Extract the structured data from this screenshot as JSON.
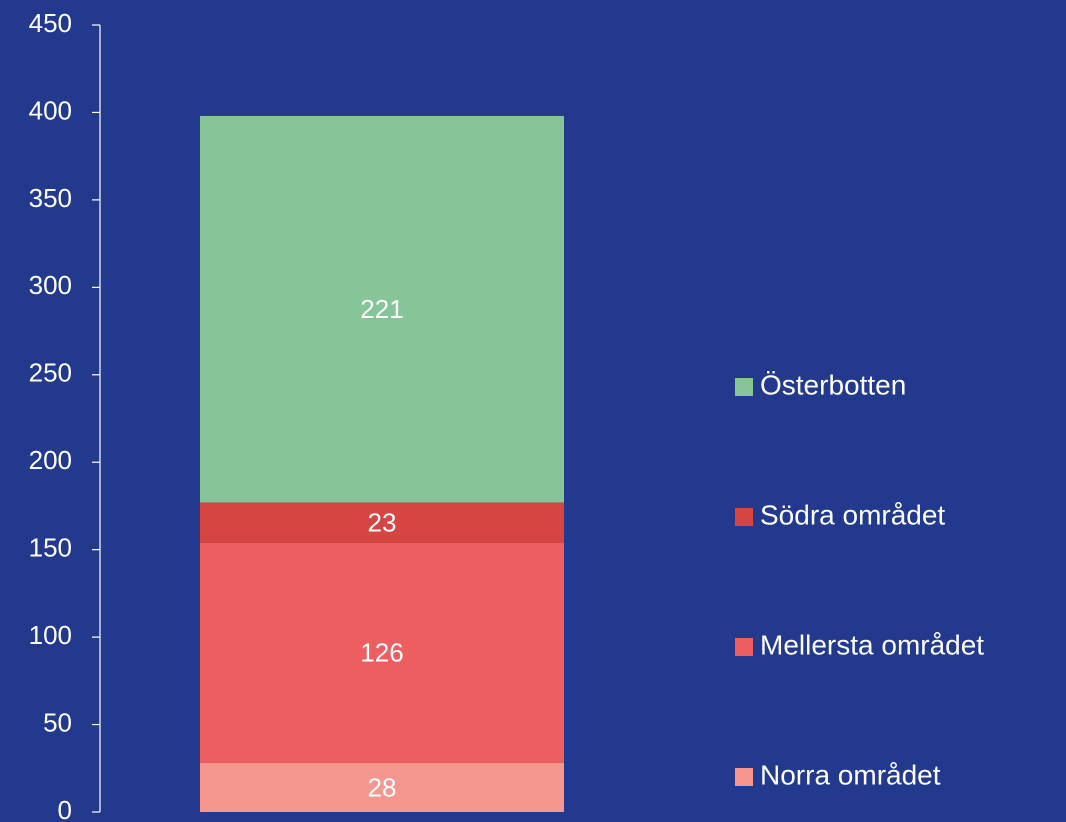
{
  "chart_data": {
    "type": "stacked_bar",
    "categories": [
      null
    ],
    "series": [
      {
        "name": "Norra området",
        "color": "#f4978e",
        "values": [
          28
        ]
      },
      {
        "name": "Mellersta området",
        "color": "#ec5e60",
        "values": [
          126
        ]
      },
      {
        "name": "Södra området",
        "color": "#d54541",
        "values": [
          23
        ]
      },
      {
        "name": "Österbotten",
        "color": "#86c598",
        "values": [
          221
        ]
      }
    ],
    "ylim": [
      0,
      450
    ],
    "yticks": [
      0,
      50,
      100,
      150,
      200,
      250,
      300,
      350,
      400,
      450
    ],
    "legend": "right"
  }
}
